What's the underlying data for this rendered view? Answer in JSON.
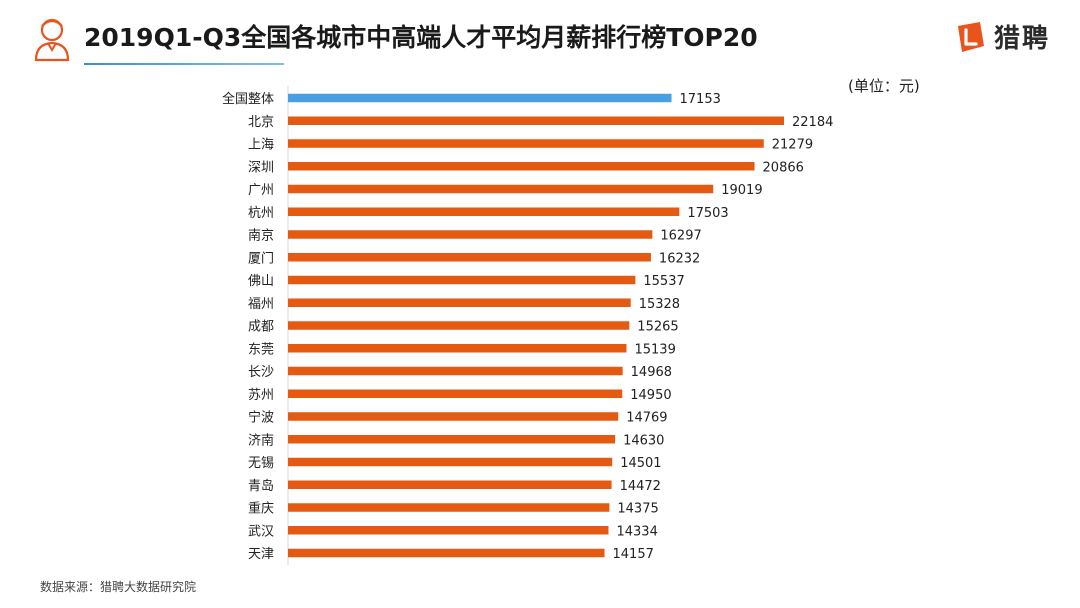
{
  "header": {
    "title": "2019Q1-Q3全国各城市中高端人才平均月薪排行榜TOP20",
    "brand_name": "猎聘",
    "unit": "(单位：元)"
  },
  "footer": {
    "source": "数据来源：猎聘大数据研究院"
  },
  "colors": {
    "overall_bar": "#4a9fe0",
    "city_bar": "#e55a12",
    "brand": "#e8541c"
  },
  "icons": {
    "header": "person-avatar-icon",
    "brand": "liepin-logo-icon"
  },
  "chart_data": {
    "type": "bar",
    "orientation": "horizontal",
    "title": "2019Q1-Q3全国各城市中高端人才平均月薪排行榜TOP20",
    "unit": "(单位：元)",
    "categories": [
      "全国整体",
      "北京",
      "上海",
      "深圳",
      "广州",
      "杭州",
      "南京",
      "厦门",
      "佛山",
      "福州",
      "成都",
      "东莞",
      "长沙",
      "苏州",
      "宁波",
      "济南",
      "无锡",
      "青岛",
      "重庆",
      "武汉",
      "天津"
    ],
    "values": [
      17153,
      22184,
      21279,
      20866,
      19019,
      17503,
      16297,
      16232,
      15537,
      15328,
      15265,
      15139,
      14968,
      14950,
      14769,
      14630,
      14501,
      14472,
      14375,
      14334,
      14157
    ],
    "highlight_index": 0,
    "data_labels": true,
    "grid": false,
    "xlim": [
      0,
      22184
    ]
  }
}
